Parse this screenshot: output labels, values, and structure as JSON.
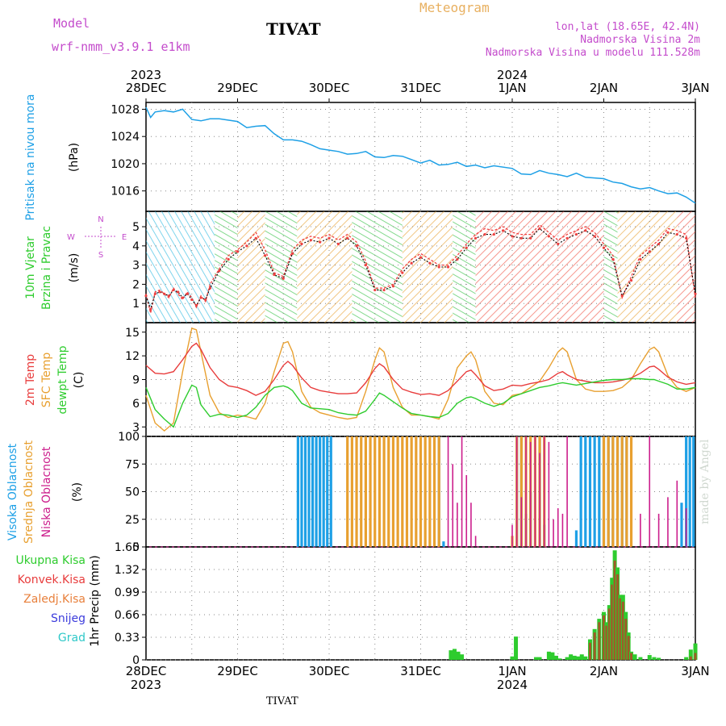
{
  "header": {
    "model_label": "Model",
    "model_name": "wrf-nmm_v3.9.1  e1km",
    "title": "TIVAT",
    "meteogram": "Meteogram",
    "lonlat": "lon,lat (18.65E, 42.4N)",
    "altitude": "Nadmorska Visina 2m",
    "model_altitude": "Nadmorska Visina u modelu 111.528m"
  },
  "footer": {
    "station": "TIVAT",
    "credit": "made by Angel"
  },
  "time_axis": {
    "days": [
      "28DEC",
      "29DEC",
      "30DEC",
      "31DEC",
      "1JAN",
      "2JAN",
      "3JAN"
    ],
    "year_start": "2023",
    "year_mid": "2024"
  },
  "colors": {
    "pressure": "#1ea0e6",
    "temp2m": "#e83c3c",
    "sfc_temp": "#e8a030",
    "dewpoint": "#2ecc2e",
    "high_cloud": "#1ea0e6",
    "mid_cloud": "#e8a030",
    "low_cloud": "#cc1e8c",
    "total_precip": "#2ecc2e",
    "conv_precip": "#e83c3c",
    "frozen_precip": "#e8803c",
    "snow": "#3c3cdc",
    "grad": "#2ec8c8",
    "wind_label": "#c44ccc"
  },
  "chart_data": [
    {
      "type": "line",
      "panel": "pressure",
      "ylabel_name": "Pritisak na nivou mora",
      "ylabel_unit": "(hPa)",
      "ylim": [
        1013,
        1029
      ],
      "yticks": [
        1016,
        1020,
        1024,
        1028
      ],
      "x_days": [
        0,
        0.05,
        0.1,
        0.2,
        0.3,
        0.4,
        0.5,
        0.6,
        0.7,
        0.8,
        1.0,
        1.1,
        1.2,
        1.3,
        1.4,
        1.5,
        1.6,
        1.7,
        1.8,
        1.9,
        2.0,
        2.1,
        2.2,
        2.3,
        2.4,
        2.5,
        2.6,
        2.7,
        2.8,
        3.0,
        3.1,
        3.2,
        3.3,
        3.4,
        3.5,
        3.6,
        3.7,
        3.8,
        4.0,
        4.1,
        4.2,
        4.3,
        4.4,
        4.5,
        4.6,
        4.7,
        4.8,
        5.0,
        5.1,
        5.2,
        5.3,
        5.4,
        5.5,
        5.6,
        5.7,
        5.8,
        5.9,
        6.0
      ],
      "series": [
        {
          "values": [
            1028.3,
            1026.8,
            1027.6,
            1027.8,
            1027.6,
            1028.0,
            1026.5,
            1026.3,
            1026.6,
            1026.6,
            1026.2,
            1025.3,
            1025.5,
            1025.6,
            1024.4,
            1023.5,
            1023.5,
            1023.3,
            1022.8,
            1022.2,
            1022.0,
            1021.8,
            1021.4,
            1021.5,
            1021.8,
            1021.0,
            1020.9,
            1021.2,
            1021.1,
            1020.1,
            1020.5,
            1019.8,
            1019.9,
            1020.2,
            1019.6,
            1019.8,
            1019.4,
            1019.7,
            1019.3,
            1018.5,
            1018.4,
            1019.0,
            1018.6,
            1018.4,
            1018.1,
            1018.6,
            1018.0,
            1017.8,
            1017.3,
            1017.1,
            1016.6,
            1016.3,
            1016.5,
            1016.0,
            1015.6,
            1015.7,
            1015.1,
            1014.2
          ]
        }
      ]
    },
    {
      "type": "line",
      "panel": "wind",
      "ylabel_name": "10m Vjetar",
      "ylabel_name2": "Brzina i Pravac",
      "ylabel_unit": "(m/s)",
      "compass": {
        "n": "N",
        "s": "S",
        "w": "W",
        "e": "E"
      },
      "ylim": [
        0,
        5.8
      ],
      "yticks": [
        1,
        2,
        3,
        4,
        5
      ],
      "x_days": [
        0,
        0.05,
        0.1,
        0.15,
        0.2,
        0.25,
        0.3,
        0.35,
        0.4,
        0.45,
        0.5,
        0.55,
        0.6,
        0.65,
        0.7,
        0.8,
        0.9,
        1.0,
        1.1,
        1.2,
        1.3,
        1.4,
        1.5,
        1.6,
        1.7,
        1.8,
        1.9,
        2.0,
        2.1,
        2.2,
        2.3,
        2.4,
        2.5,
        2.6,
        2.7,
        2.8,
        2.9,
        3.0,
        3.1,
        3.2,
        3.3,
        3.4,
        3.5,
        3.6,
        3.7,
        3.8,
        3.9,
        4.0,
        4.1,
        4.2,
        4.3,
        4.4,
        4.5,
        4.6,
        4.7,
        4.8,
        4.9,
        5.0,
        5.1,
        5.2,
        5.3,
        5.4,
        5.5,
        5.6,
        5.7,
        5.8,
        5.9,
        6.0
      ],
      "series": [
        {
          "values": [
            1.5,
            0.5,
            1.6,
            1.7,
            1.5,
            1.3,
            1.8,
            1.5,
            1.2,
            1.6,
            1.3,
            0.8,
            1.4,
            1.1,
            2.0,
            2.8,
            3.5,
            3.8,
            4.2,
            4.7,
            3.8,
            2.6,
            2.4,
            3.8,
            4.3,
            4.5,
            4.4,
            4.6,
            4.3,
            4.6,
            4.2,
            3.2,
            1.8,
            1.8,
            2.0,
            2.8,
            3.3,
            3.6,
            3.3,
            3.0,
            3.0,
            3.5,
            4.1,
            4.6,
            4.9,
            4.8,
            5.0,
            4.7,
            4.6,
            4.6,
            5.1,
            4.7,
            4.3,
            4.6,
            4.8,
            5.0,
            4.7,
            4.1,
            3.5,
            1.3,
            2.4,
            3.5,
            3.9,
            4.3,
            4.9,
            4.8,
            4.6,
            1.3
          ]
        },
        {
          "values": [
            1.4,
            0.7,
            1.5,
            1.6,
            1.5,
            1.4,
            1.7,
            1.6,
            1.3,
            1.5,
            1.2,
            0.9,
            1.3,
            1.2,
            1.8,
            2.7,
            3.3,
            3.7,
            4.0,
            4.4,
            3.5,
            2.5,
            2.3,
            3.6,
            4.1,
            4.3,
            4.2,
            4.4,
            4.1,
            4.4,
            4.0,
            3.0,
            1.7,
            1.7,
            1.9,
            2.6,
            3.1,
            3.4,
            3.1,
            2.9,
            2.9,
            3.3,
            3.9,
            4.4,
            4.6,
            4.6,
            4.8,
            4.5,
            4.4,
            4.4,
            4.9,
            4.5,
            4.1,
            4.4,
            4.6,
            4.8,
            4.5,
            3.9,
            3.3,
            1.4,
            2.2,
            3.3,
            3.7,
            4.1,
            4.7,
            4.6,
            4.4,
            1.5
          ]
        }
      ]
    },
    {
      "type": "line",
      "panel": "temperature",
      "ylabel_name": "2m Temp",
      "ylabel_name2": "SFC Temp",
      "ylabel_name3": "dewpt Temp",
      "ylabel_unit": "(C)",
      "ylim": [
        1.8,
        16.2
      ],
      "yticks": [
        3,
        6,
        9,
        12,
        15
      ],
      "x_days": [
        0,
        0.1,
        0.2,
        0.3,
        0.4,
        0.5,
        0.55,
        0.6,
        0.7,
        0.8,
        0.9,
        1.0,
        1.1,
        1.2,
        1.3,
        1.4,
        1.5,
        1.55,
        1.6,
        1.7,
        1.8,
        1.9,
        2.0,
        2.1,
        2.2,
        2.3,
        2.4,
        2.5,
        2.55,
        2.6,
        2.7,
        2.8,
        2.9,
        3.0,
        3.1,
        3.2,
        3.3,
        3.4,
        3.5,
        3.55,
        3.6,
        3.7,
        3.8,
        3.9,
        4.0,
        4.1,
        4.2,
        4.3,
        4.4,
        4.5,
        4.55,
        4.6,
        4.7,
        4.8,
        4.9,
        5.0,
        5.1,
        5.2,
        5.3,
        5.4,
        5.5,
        5.55,
        5.6,
        5.7,
        5.8,
        5.9,
        6.0
      ],
      "series": [
        {
          "values": [
            10.8,
            9.8,
            9.7,
            10.0,
            11.5,
            13.2,
            13.6,
            12.8,
            10.5,
            9.0,
            8.2,
            8.0,
            7.6,
            7.0,
            7.5,
            9.0,
            10.8,
            11.3,
            10.8,
            9.2,
            8.0,
            7.6,
            7.4,
            7.2,
            7.2,
            7.3,
            8.6,
            10.4,
            11.0,
            10.6,
            9.0,
            7.8,
            7.4,
            7.1,
            7.2,
            7.0,
            7.6,
            8.8,
            10.0,
            10.2,
            9.6,
            8.2,
            7.6,
            7.8,
            8.3,
            8.2,
            8.5,
            8.7,
            9.0,
            9.8,
            10.0,
            9.6,
            9.0,
            8.8,
            8.6,
            8.6,
            8.7,
            8.9,
            9.2,
            9.8,
            10.6,
            10.7,
            10.3,
            9.3,
            8.7,
            8.4,
            8.6
          ]
        },
        {
          "values": [
            7.0,
            3.5,
            2.5,
            3.5,
            10.0,
            15.5,
            15.3,
            12.5,
            7.0,
            4.8,
            4.2,
            4.5,
            4.3,
            4.0,
            6.0,
            10.0,
            13.6,
            13.8,
            12.5,
            7.5,
            5.5,
            4.8,
            4.5,
            4.2,
            4.0,
            4.2,
            7.5,
            11.5,
            13.0,
            12.5,
            8.0,
            5.5,
            4.5,
            4.5,
            4.3,
            4.0,
            6.5,
            10.5,
            12.0,
            12.5,
            11.5,
            7.5,
            6.0,
            5.8,
            7.0,
            7.2,
            8.0,
            8.8,
            10.5,
            12.5,
            13.0,
            12.5,
            9.0,
            7.8,
            7.5,
            7.5,
            7.6,
            8.0,
            9.0,
            11.0,
            12.8,
            13.1,
            12.5,
            9.5,
            8.0,
            7.5,
            8.0
          ]
        },
        {
          "values": [
            8.0,
            5.2,
            4.0,
            3.0,
            6.0,
            8.3,
            8.0,
            5.8,
            4.3,
            4.6,
            4.5,
            4.2,
            4.5,
            5.5,
            7.0,
            8.0,
            8.2,
            8.0,
            7.6,
            6.0,
            5.4,
            5.3,
            5.2,
            4.8,
            4.6,
            4.5,
            5.0,
            6.5,
            7.3,
            7.0,
            6.2,
            5.4,
            4.7,
            4.5,
            4.3,
            4.2,
            4.7,
            6.0,
            6.7,
            6.8,
            6.6,
            6.0,
            5.6,
            6.0,
            6.8,
            7.2,
            7.6,
            8.0,
            8.2,
            8.5,
            8.6,
            8.5,
            8.3,
            8.5,
            8.7,
            8.9,
            9.0,
            9.0,
            9.1,
            9.1,
            9.0,
            9.0,
            8.8,
            8.4,
            7.8,
            7.8,
            8.0
          ]
        }
      ]
    },
    {
      "type": "bar",
      "panel": "clouds",
      "ylabel_name": "Visoka Oblacnost",
      "ylabel_name2": "Srednja Oblacnost",
      "ylabel_name3": "Niska Oblacnost",
      "ylabel_unit": "(%)",
      "ylim": [
        0,
        100
      ],
      "yticks": [
        0,
        25,
        50,
        75,
        100
      ],
      "series": [
        {
          "key": "high",
          "x": [
            1.66,
            1.7,
            1.74,
            1.78,
            1.82,
            1.86,
            1.9,
            1.94,
            1.98,
            2.02,
            5.94,
            5.98
          ],
          "values": [
            100,
            100,
            100,
            100,
            100,
            100,
            100,
            100,
            100,
            100,
            100,
            100
          ]
        },
        {
          "key": "high",
          "x": [
            3.2,
            3.25,
            4.05,
            4.1,
            4.15,
            4.2,
            4.3,
            4.35,
            4.7,
            4.75,
            4.8,
            4.85,
            4.9,
            4.95,
            5.0,
            5.05,
            5.1,
            5.15,
            5.2,
            5.25,
            5.85,
            5.9
          ],
          "values": [
            100,
            5,
            100,
            100,
            30,
            50,
            100,
            20,
            15,
            100,
            100,
            100,
            100,
            100,
            100,
            100,
            100,
            100,
            100,
            100,
            40,
            100
          ]
        },
        {
          "key": "mid",
          "x": [
            2.2,
            2.25,
            2.3,
            2.35,
            2.4,
            2.45,
            2.5,
            2.55,
            2.6,
            2.65,
            2.7,
            2.75,
            2.8,
            2.85,
            2.9,
            2.95,
            3.0,
            3.05,
            3.1,
            3.15,
            3.2,
            4.0,
            4.05,
            4.1,
            4.15,
            4.2,
            4.25,
            4.3,
            4.35,
            5.0,
            5.05,
            5.1,
            5.15,
            5.2,
            5.25,
            5.3
          ],
          "values": [
            100,
            100,
            100,
            100,
            100,
            100,
            100,
            100,
            100,
            100,
            100,
            100,
            100,
            100,
            100,
            100,
            100,
            100,
            100,
            100,
            100,
            10,
            100,
            100,
            100,
            100,
            100,
            100,
            100,
            100,
            100,
            100,
            100,
            100,
            100,
            100
          ]
        },
        {
          "key": "low",
          "x": [
            3.3,
            3.35,
            3.4,
            3.45,
            3.5,
            3.55,
            3.6,
            4.0,
            4.05,
            4.1,
            4.15,
            4.2,
            4.25,
            4.3,
            4.35,
            4.4,
            4.45,
            4.5,
            4.55,
            4.6,
            5.4,
            5.5,
            5.6,
            5.7,
            5.8,
            5.9
          ],
          "values": [
            100,
            75,
            40,
            100,
            65,
            40,
            10,
            20,
            100,
            45,
            100,
            95,
            100,
            85,
            100,
            95,
            25,
            35,
            30,
            100,
            30,
            100,
            30,
            45,
            60,
            35
          ]
        }
      ]
    },
    {
      "type": "bar",
      "panel": "precipitation",
      "ylabel_name": "1hr Precip",
      "ylabel_unit": "(mm)",
      "legend": [
        "Ukupna  Kisa",
        "Konvek.Kisa",
        "Zaledj.Kisa",
        "Snijeg",
        "Grad"
      ],
      "ylim": [
        0,
        1.65
      ],
      "yticks": [
        0,
        0.33,
        0.66,
        0.99,
        1.32,
        1.65
      ],
      "x_days": [
        3.33,
        3.37,
        3.41,
        3.45,
        4.0,
        4.04,
        4.26,
        4.3,
        4.4,
        4.44,
        4.48,
        4.52,
        4.6,
        4.64,
        4.68,
        4.72,
        4.76,
        4.8,
        4.85,
        4.9,
        4.95,
        5.0,
        5.03,
        5.06,
        5.09,
        5.12,
        5.15,
        5.18,
        5.21,
        5.24,
        5.27,
        5.3,
        5.34,
        5.4,
        5.5,
        5.55,
        5.6,
        5.9,
        5.95,
        6.0
      ],
      "series": [
        {
          "key": "total",
          "values": [
            0.14,
            0.16,
            0.12,
            0.08,
            0.05,
            0.34,
            0.04,
            0.04,
            0.12,
            0.11,
            0.06,
            0.02,
            0.04,
            0.08,
            0.06,
            0.05,
            0.08,
            0.05,
            0.3,
            0.45,
            0.6,
            0.7,
            0.55,
            0.8,
            1.2,
            1.6,
            1.35,
            0.95,
            0.95,
            0.7,
            0.4,
            0.12,
            0.08,
            0.04,
            0.07,
            0.04,
            0.03,
            0.04,
            0.15,
            0.24
          ]
        },
        {
          "key": "convective",
          "values": [
            0,
            0,
            0,
            0,
            0,
            0,
            0,
            0,
            0,
            0,
            0,
            0,
            0,
            0,
            0,
            0,
            0,
            0,
            0.25,
            0.4,
            0.55,
            0.65,
            0.5,
            0.75,
            1.1,
            1.45,
            1.25,
            0.9,
            0.85,
            0.6,
            0.35,
            0.1,
            0,
            0,
            0,
            0,
            0,
            0,
            0.05,
            0.1
          ]
        }
      ]
    }
  ]
}
